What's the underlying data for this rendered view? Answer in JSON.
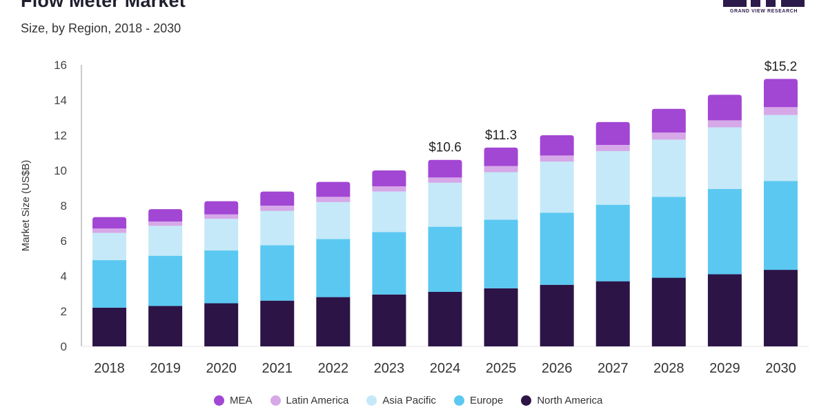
{
  "header": {
    "title": "Flow Meter Market",
    "subtitle": "Size, by Region, 2018 - 2030"
  },
  "logo": {
    "text": "GRAND VIEW RESEARCH"
  },
  "chart_data": {
    "type": "bar",
    "stacked": true,
    "categories": [
      "2018",
      "2019",
      "2020",
      "2021",
      "2022",
      "2023",
      "2024",
      "2025",
      "2026",
      "2027",
      "2028",
      "2029",
      "2030"
    ],
    "series": [
      {
        "name": "North America",
        "color": "#2c1447",
        "values": [
          2.2,
          2.3,
          2.45,
          2.6,
          2.8,
          2.95,
          3.1,
          3.3,
          3.5,
          3.7,
          3.9,
          4.1,
          4.35
        ]
      },
      {
        "name": "Europe",
        "color": "#5bc8f2",
        "values": [
          2.7,
          2.85,
          3.0,
          3.15,
          3.3,
          3.55,
          3.7,
          3.9,
          4.1,
          4.35,
          4.6,
          4.85,
          5.05
        ]
      },
      {
        "name": "Asia Pacific",
        "color": "#c5e9f8",
        "values": [
          1.55,
          1.7,
          1.8,
          1.95,
          2.1,
          2.3,
          2.5,
          2.7,
          2.9,
          3.05,
          3.25,
          3.5,
          3.75
        ]
      },
      {
        "name": "Latin America",
        "color": "#d6a8e8",
        "values": [
          0.25,
          0.25,
          0.25,
          0.3,
          0.3,
          0.3,
          0.3,
          0.35,
          0.35,
          0.35,
          0.4,
          0.4,
          0.45
        ]
      },
      {
        "name": "MEA",
        "color": "#a246d4",
        "values": [
          0.65,
          0.7,
          0.75,
          0.8,
          0.85,
          0.9,
          1.0,
          1.05,
          1.15,
          1.3,
          1.35,
          1.45,
          1.6
        ]
      }
    ],
    "legend_order": [
      "MEA",
      "Latin America",
      "Asia Pacific",
      "Europe",
      "North America"
    ],
    "annotations": [
      {
        "category": "2024",
        "label": "$10.6"
      },
      {
        "category": "2025",
        "label": "$11.3"
      },
      {
        "category": "2030",
        "label": "$15.2"
      }
    ],
    "yticks": [
      "0",
      "2",
      "4",
      "6",
      "8",
      "10",
      "12",
      "14",
      "16"
    ],
    "ylabel": "Market Size (US$B)",
    "xlabel": "",
    "ylim": [
      0,
      16
    ],
    "grid": false,
    "legend_position": "bottom"
  }
}
